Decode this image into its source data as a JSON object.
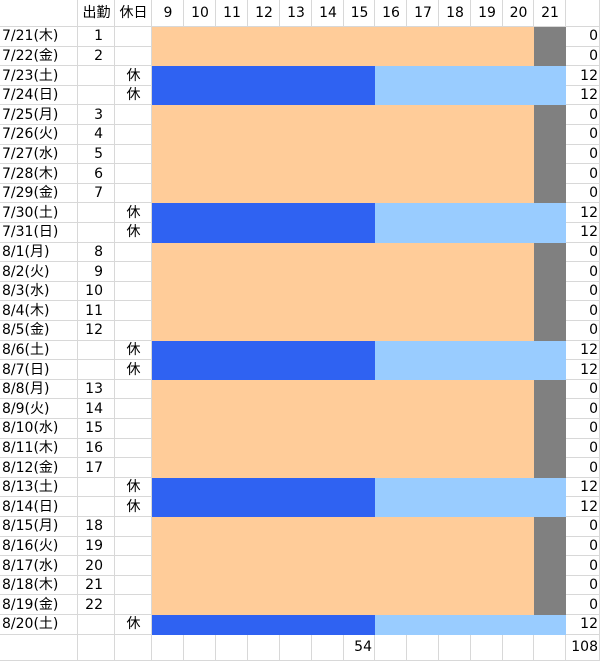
{
  "header": {
    "work": "出勤",
    "holiday": "休日",
    "hours": [
      9,
      10,
      11,
      12,
      13,
      14,
      15,
      16,
      17,
      18,
      19,
      20,
      21
    ]
  },
  "rows": [
    {
      "date": "7/21(木)",
      "work": 1,
      "holiday": null,
      "total": 0
    },
    {
      "date": "7/22(金)",
      "work": 2,
      "holiday": null,
      "total": 0
    },
    {
      "date": "7/23(土)",
      "work": null,
      "holiday": "休",
      "total": 12
    },
    {
      "date": "7/24(日)",
      "work": null,
      "holiday": "休",
      "total": 12
    },
    {
      "date": "7/25(月)",
      "work": 3,
      "holiday": null,
      "total": 0
    },
    {
      "date": "7/26(火)",
      "work": 4,
      "holiday": null,
      "total": 0
    },
    {
      "date": "7/27(水)",
      "work": 5,
      "holiday": null,
      "total": 0
    },
    {
      "date": "7/28(木)",
      "work": 6,
      "holiday": null,
      "total": 0
    },
    {
      "date": "7/29(金)",
      "work": 7,
      "holiday": null,
      "total": 0
    },
    {
      "date": "7/30(土)",
      "work": null,
      "holiday": "休",
      "total": 12
    },
    {
      "date": "7/31(日)",
      "work": null,
      "holiday": "休",
      "total": 12
    },
    {
      "date": "8/1(月)",
      "work": 8,
      "holiday": null,
      "total": 0
    },
    {
      "date": "8/2(火)",
      "work": 9,
      "holiday": null,
      "total": 0
    },
    {
      "date": "8/3(水)",
      "work": 10,
      "holiday": null,
      "total": 0
    },
    {
      "date": "8/4(木)",
      "work": 11,
      "holiday": null,
      "total": 0
    },
    {
      "date": "8/5(金)",
      "work": 12,
      "holiday": null,
      "total": 0
    },
    {
      "date": "8/6(土)",
      "work": null,
      "holiday": "休",
      "total": 12
    },
    {
      "date": "8/7(日)",
      "work": null,
      "holiday": "休",
      "total": 12
    },
    {
      "date": "8/8(月)",
      "work": 13,
      "holiday": null,
      "total": 0
    },
    {
      "date": "8/9(火)",
      "work": 14,
      "holiday": null,
      "total": 0
    },
    {
      "date": "8/10(水)",
      "work": 15,
      "holiday": null,
      "total": 0
    },
    {
      "date": "8/11(木)",
      "work": 16,
      "holiday": null,
      "total": 0
    },
    {
      "date": "8/12(金)",
      "work": 17,
      "holiday": null,
      "total": 0
    },
    {
      "date": "8/13(土)",
      "work": null,
      "holiday": "休",
      "total": 12
    },
    {
      "date": "8/14(日)",
      "work": null,
      "holiday": "休",
      "total": 12
    },
    {
      "date": "8/15(月)",
      "work": 18,
      "holiday": null,
      "total": 0
    },
    {
      "date": "8/16(火)",
      "work": 19,
      "holiday": null,
      "total": 0
    },
    {
      "date": "8/17(水)",
      "work": 20,
      "holiday": null,
      "total": 0
    },
    {
      "date": "8/18(木)",
      "work": 21,
      "holiday": null,
      "total": 0
    },
    {
      "date": "8/19(金)",
      "work": 22,
      "holiday": null,
      "total": 0
    },
    {
      "date": "8/20(土)",
      "work": null,
      "holiday": "休",
      "total": 12
    }
  ],
  "totals": {
    "hour15": 54,
    "total": 108
  }
}
